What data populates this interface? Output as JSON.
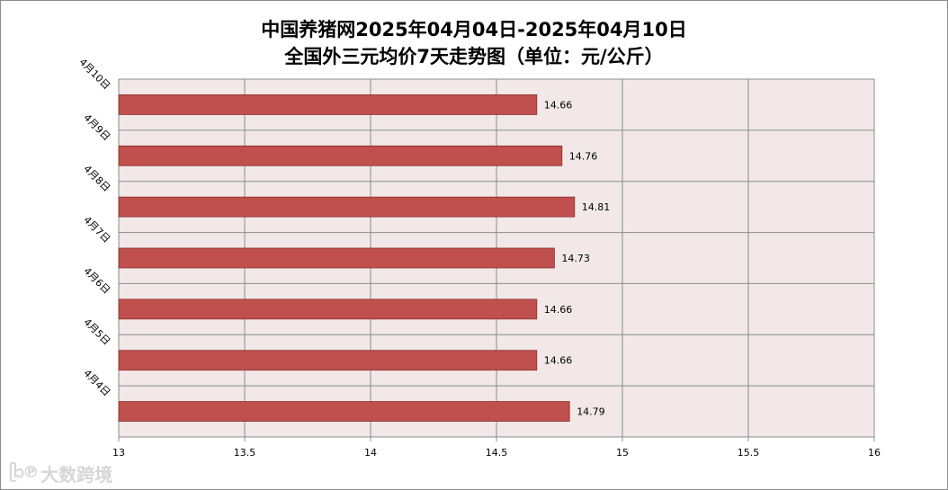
{
  "chart_data": {
    "type": "bar",
    "orientation": "horizontal",
    "title_line1": "中国养猪网2025年04月04日-2025年04月10日",
    "title_line2": "全国外三元均价7天走势图（单位：元/公斤）",
    "categories": [
      "4月10日",
      "4月9日",
      "4月8日",
      "4月7日",
      "4月6日",
      "4月5日",
      "4月4日"
    ],
    "values": [
      14.66,
      14.76,
      14.81,
      14.73,
      14.66,
      14.66,
      14.79
    ],
    "value_labels": [
      "14.66",
      "14.76",
      "14.81",
      "14.73",
      "14.66",
      "14.66",
      "14.79"
    ],
    "xlim": [
      13,
      16
    ],
    "xticks": [
      13,
      13.5,
      14,
      14.5,
      15,
      15.5,
      16
    ],
    "xtick_labels": [
      "13",
      "13.5",
      "14",
      "14.5",
      "15",
      "15.5",
      "16"
    ],
    "grid": true,
    "bar_color": "#c0504d",
    "plot_background": "#f2e8e8",
    "grid_color": "#8c8c8c"
  },
  "watermark": {
    "logo": "ᥫᩣ℗",
    "text": "大数跨境"
  }
}
